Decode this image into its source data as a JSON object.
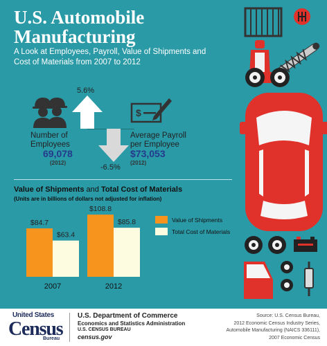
{
  "header": {
    "title_line1": "U.S. Automobile",
    "title_line2": "Manufacturing",
    "subtitle_line1": "A Look at Employees, Payroll,  Value of Shipments and",
    "subtitle_line2": "Cost of Materials from 2007 to 2012"
  },
  "employees": {
    "label_line1": "Number of",
    "label_line2": "Employees",
    "value": "69,078",
    "year": "(2012)",
    "change": "5.6%"
  },
  "payroll": {
    "label_line1": "Average Payroll",
    "label_line2": "per Employee",
    "value": "$73,053",
    "year": "(2012)",
    "change": "-6.5%"
  },
  "colors": {
    "background": "#2b9aa7",
    "shipments": "#f7941d",
    "materials": "#fdfbe0",
    "accent_blue": "#243a8c",
    "car_red": "#e0312b"
  },
  "chart_data": {
    "type": "bar",
    "title_part1": "Value of Shipments",
    "title_part2": " and ",
    "title_part3": "Total Cost of Materials",
    "note": "(Units are in billions of dollars not adjusted for inflation)",
    "categories": [
      "2007",
      "2012"
    ],
    "series": [
      {
        "name": "Value of Shipments",
        "values": [
          84.7,
          108.8
        ],
        "labels": [
          "$84.7",
          "$108.8"
        ],
        "color": "#f7941d"
      },
      {
        "name": "Total Cost of Materials",
        "values": [
          63.4,
          85.8
        ],
        "labels": [
          "$63.4",
          "$85.8"
        ],
        "color": "#fdfbe0"
      }
    ],
    "ylim": [
      0,
      115
    ]
  },
  "footer": {
    "logo_top": "United States",
    "logo_main": "Census",
    "logo_bureau": "Bureau",
    "dept_line1": "U.S. Department of Commerce",
    "dept_line2": "Economics and Statistics Administration",
    "dept_line3": "U.S. CENSUS BUREAU",
    "dept_line4": "census.gov",
    "source_line1": "Source: U.S. Census Bureau,",
    "source_line2": "2012 Economic Census Industry Series,",
    "source_line3": "Automobile Manufacturing (NAICS 336111),",
    "source_line4": "2007 Economic Census"
  },
  "icons": [
    "workers-icon",
    "check-writing-icon",
    "up-arrow-icon",
    "down-arrow-icon",
    "radiator-icon",
    "gear-shift-icon",
    "car-seat-icon",
    "shock-absorber-icon",
    "wheel-icon",
    "red-car-icon",
    "battery-icon",
    "car-door-icon",
    "brake-disc-icon",
    "muffler-icon"
  ]
}
